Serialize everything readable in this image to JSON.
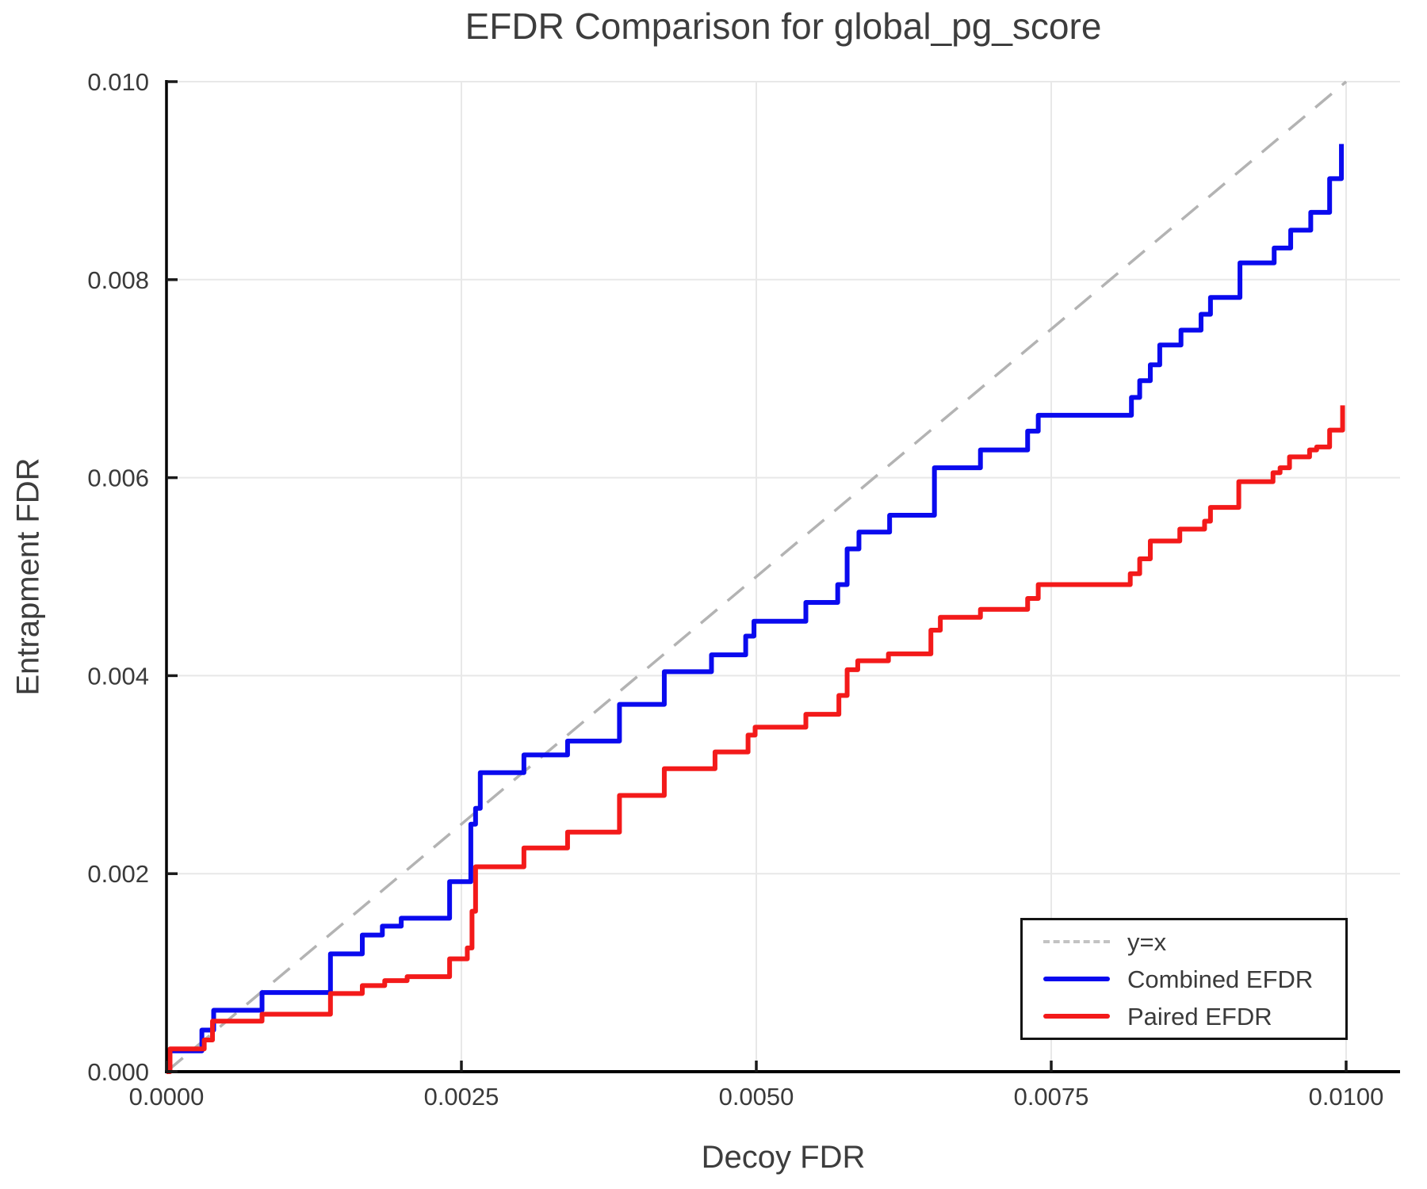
{
  "chart_data": {
    "type": "line",
    "title": "EFDR Comparison for global_pg_score",
    "xlabel": "Decoy FDR",
    "ylabel": "Entrapment FDR",
    "xlim": [
      0.0,
      0.01
    ],
    "ylim": [
      0.0,
      0.01
    ],
    "grid": true,
    "legend_position": "lower right",
    "x_ticks": [
      {
        "value": 0.0,
        "label": "0.0000"
      },
      {
        "value": 0.0025,
        "label": "0.0025"
      },
      {
        "value": 0.005,
        "label": "0.0050"
      },
      {
        "value": 0.0075,
        "label": "0.0075"
      },
      {
        "value": 0.01,
        "label": "0.0100"
      }
    ],
    "y_ticks": [
      {
        "value": 0.0,
        "label": "0.000"
      },
      {
        "value": 0.002,
        "label": "0.002"
      },
      {
        "value": 0.004,
        "label": "0.004"
      },
      {
        "value": 0.006,
        "label": "0.006"
      },
      {
        "value": 0.008,
        "label": "0.008"
      },
      {
        "value": 0.01,
        "label": "0.010"
      }
    ],
    "reference_line": {
      "name": "y=x",
      "style": "dashed",
      "color": "#b3b3b3",
      "from": [
        0.0,
        0.0
      ],
      "to": [
        0.01,
        0.01
      ]
    },
    "series": [
      {
        "name": "Combined EFDR",
        "color": "#0a0aee",
        "step": "post",
        "points": [
          [
            0.0,
            0.0
          ],
          [
            2e-05,
            0.00021
          ],
          [
            0.0003,
            0.00042
          ],
          [
            0.0004,
            0.00062
          ],
          [
            0.00081,
            0.0008
          ],
          [
            0.00139,
            0.00119
          ],
          [
            0.00166,
            0.00138
          ],
          [
            0.00183,
            0.00147
          ],
          [
            0.00199,
            0.00155
          ],
          [
            0.0024,
            0.00192
          ],
          [
            0.00258,
            0.0025
          ],
          [
            0.00262,
            0.00266
          ],
          [
            0.00266,
            0.00302
          ],
          [
            0.00303,
            0.0032
          ],
          [
            0.0034,
            0.00334
          ],
          [
            0.00384,
            0.00371
          ],
          [
            0.00422,
            0.00404
          ],
          [
            0.00462,
            0.00421
          ],
          [
            0.00491,
            0.0044
          ],
          [
            0.00498,
            0.00455
          ],
          [
            0.00542,
            0.00474
          ],
          [
            0.00569,
            0.00492
          ],
          [
            0.00577,
            0.00528
          ],
          [
            0.00587,
            0.00545
          ],
          [
            0.00613,
            0.00562
          ],
          [
            0.00651,
            0.0061
          ],
          [
            0.0069,
            0.00628
          ],
          [
            0.0073,
            0.00647
          ],
          [
            0.00739,
            0.00663
          ],
          [
            0.00818,
            0.00681
          ],
          [
            0.00825,
            0.00698
          ],
          [
            0.00834,
            0.00714
          ],
          [
            0.00842,
            0.00734
          ],
          [
            0.0086,
            0.00749
          ],
          [
            0.00877,
            0.00765
          ],
          [
            0.00885,
            0.00782
          ],
          [
            0.0091,
            0.00817
          ],
          [
            0.00939,
            0.00832
          ],
          [
            0.00953,
            0.0085
          ],
          [
            0.0097,
            0.00868
          ],
          [
            0.00986,
            0.00902
          ],
          [
            0.00996,
            0.00937
          ]
        ]
      },
      {
        "name": "Paired EFDR",
        "color": "#f31a1a",
        "step": "post",
        "points": [
          [
            0.0,
            0.0
          ],
          [
            3e-05,
            0.00023
          ],
          [
            0.00032,
            0.00032
          ],
          [
            0.00039,
            0.00051
          ],
          [
            0.00081,
            0.00058
          ],
          [
            0.00139,
            0.00079
          ],
          [
            0.00166,
            0.00087
          ],
          [
            0.00185,
            0.00092
          ],
          [
            0.00204,
            0.00096
          ],
          [
            0.0024,
            0.00114
          ],
          [
            0.00255,
            0.00125
          ],
          [
            0.00259,
            0.00162
          ],
          [
            0.00262,
            0.00207
          ],
          [
            0.00303,
            0.00226
          ],
          [
            0.0034,
            0.00242
          ],
          [
            0.00384,
            0.00279
          ],
          [
            0.00422,
            0.00306
          ],
          [
            0.00465,
            0.00323
          ],
          [
            0.00493,
            0.0034
          ],
          [
            0.00499,
            0.00348
          ],
          [
            0.00542,
            0.00361
          ],
          [
            0.0057,
            0.0038
          ],
          [
            0.00577,
            0.00406
          ],
          [
            0.00586,
            0.00415
          ],
          [
            0.00612,
            0.00422
          ],
          [
            0.00648,
            0.00446
          ],
          [
            0.00656,
            0.00459
          ],
          [
            0.0069,
            0.00467
          ],
          [
            0.0073,
            0.00478
          ],
          [
            0.00739,
            0.00492
          ],
          [
            0.00817,
            0.00503
          ],
          [
            0.00825,
            0.00518
          ],
          [
            0.00834,
            0.00536
          ],
          [
            0.00859,
            0.00548
          ],
          [
            0.0088,
            0.00556
          ],
          [
            0.00885,
            0.0057
          ],
          [
            0.00909,
            0.00596
          ],
          [
            0.00938,
            0.00605
          ],
          [
            0.00944,
            0.0061
          ],
          [
            0.00952,
            0.00621
          ],
          [
            0.00969,
            0.00628
          ],
          [
            0.00975,
            0.00631
          ],
          [
            0.00986,
            0.00648
          ],
          [
            0.00997,
            0.00673
          ]
        ]
      }
    ],
    "style": {
      "grid_color": "#e8e8e8",
      "spine_color": "#000000",
      "tick_color": "#1a1a1a",
      "text_color": "#3a3a3a",
      "series_width": 6,
      "reference_width": 3.5
    }
  }
}
